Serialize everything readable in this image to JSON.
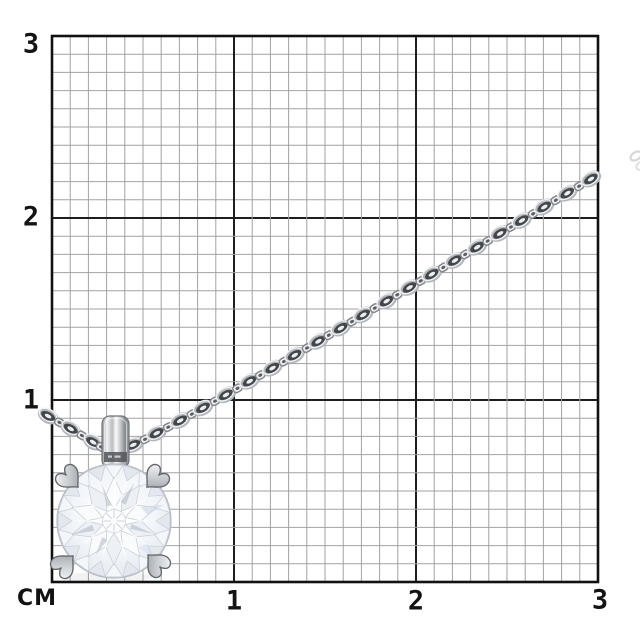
{
  "unit_label": "СМ",
  "y_axis": {
    "ticks": [
      "3",
      "2",
      "1"
    ]
  },
  "x_axis": {
    "ticks": [
      "1",
      "2",
      "3"
    ]
  },
  "grid": {
    "range_cm": 3,
    "minor_per_cm": 10,
    "background_color": "#ffffff",
    "minor_line_color": "#a2a2a2",
    "major_line_color": "#1e1e1e",
    "border_color": "#111111"
  },
  "subject": {
    "description": "White-gold solitaire pendant with round brilliant diamond in a four-prong setting, hanging on an anchor-link chain, photographed on a centimetre grid",
    "stone": "round brilliant diamond",
    "prong_count": 4,
    "chain_style": "anchor link",
    "metal_light": "#f4f5f7",
    "metal_mid": "#b5b9be",
    "metal_dark": "#62676c",
    "diamond_base": "#f2f5f9",
    "diamond_facet_line": "#c8ced6",
    "diamond_shadow_facet": "#a9b1bb",
    "diamond_blue_tint": "#c6d4e6"
  }
}
